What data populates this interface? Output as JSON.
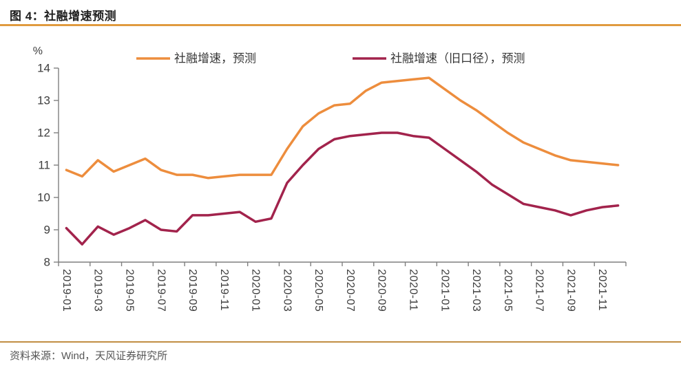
{
  "header": {
    "title": "图 4：社融增速预测"
  },
  "footer": {
    "source": "资料来源：Wind，天风证券研究所"
  },
  "colors": {
    "title_rule": "#e09a3f",
    "footer_rule": "#c18d42",
    "axis_line": "#7f7f7f",
    "axis_text": "#3d3d3d",
    "legend_text": "#363636",
    "series_new": "#ed8d3d",
    "series_old": "#a2234c"
  },
  "chart_data": {
    "type": "line",
    "title": "",
    "unit_label": "%",
    "xlabel": "",
    "ylabel": "",
    "ylim": [
      8,
      14
    ],
    "yticks": [
      8,
      9,
      10,
      11,
      12,
      13,
      14
    ],
    "grid": false,
    "legend_position": "top",
    "x_label_interval": 2,
    "x": [
      "2019-01",
      "2019-02",
      "2019-03",
      "2019-04",
      "2019-05",
      "2019-06",
      "2019-07",
      "2019-08",
      "2019-09",
      "2019-10",
      "2019-11",
      "2019-12",
      "2020-01",
      "2020-02",
      "2020-03",
      "2020-04",
      "2020-05",
      "2020-06",
      "2020-07",
      "2020-08",
      "2020-09",
      "2020-10",
      "2020-11",
      "2020-12",
      "2021-01",
      "2021-02",
      "2021-03",
      "2021-04",
      "2021-05",
      "2021-06",
      "2021-07",
      "2021-08",
      "2021-09",
      "2021-10",
      "2021-11",
      "2021-12"
    ],
    "series": [
      {
        "name": "社融增速，预测",
        "color": "#ed8d3d",
        "values": [
          10.85,
          10.65,
          11.15,
          10.8,
          11.0,
          11.2,
          10.85,
          10.7,
          10.7,
          10.6,
          10.65,
          10.7,
          10.7,
          10.7,
          11.5,
          12.2,
          12.6,
          12.85,
          12.9,
          13.3,
          13.55,
          13.6,
          13.65,
          13.7,
          13.35,
          13.0,
          12.7,
          12.35,
          12.0,
          11.7,
          11.5,
          11.3,
          11.15,
          11.1,
          11.05,
          11.0
        ]
      },
      {
        "name": "社融增速（旧口径），预测",
        "color": "#a2234c",
        "values": [
          9.05,
          8.55,
          9.1,
          8.85,
          9.05,
          9.3,
          9.0,
          8.95,
          9.45,
          9.45,
          9.5,
          9.55,
          9.25,
          9.35,
          10.45,
          11.0,
          11.5,
          11.8,
          11.9,
          11.95,
          12.0,
          12.0,
          11.9,
          11.85,
          11.5,
          11.15,
          10.8,
          10.4,
          10.1,
          9.8,
          9.7,
          9.6,
          9.45,
          9.6,
          9.7,
          9.75
        ]
      }
    ]
  }
}
